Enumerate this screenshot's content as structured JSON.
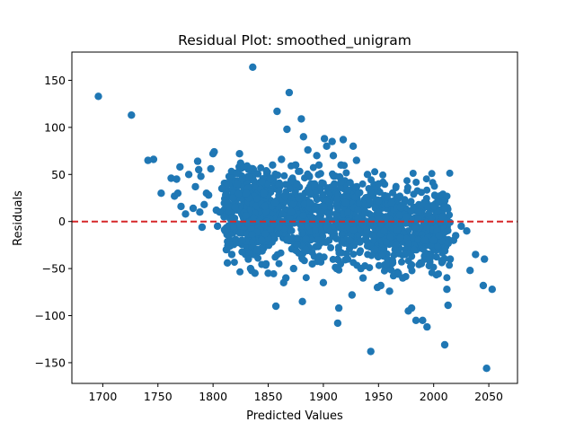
{
  "chart_data": {
    "type": "scatter",
    "title": "Residual Plot: smoothed_unigram",
    "xlabel": "Predicted Values",
    "ylabel": "Residuals",
    "xlim": [
      1672,
      2076
    ],
    "ylim": [
      -172,
      180
    ],
    "xticks": [
      1700,
      1750,
      1800,
      1850,
      1900,
      1950,
      2000,
      2050
    ],
    "yticks": [
      -150,
      -100,
      -50,
      0,
      50,
      100,
      150
    ],
    "grid": false,
    "legend": "none",
    "reference_line": {
      "y": 0,
      "style": "dashed",
      "color": "#d62728"
    },
    "marker_color": "#1f77b4",
    "series": [
      {
        "points": [
          [
            1696,
            133
          ],
          [
            1726,
            113
          ],
          [
            1741,
            65
          ],
          [
            1746,
            66
          ],
          [
            1753,
            30
          ],
          [
            1762,
            46
          ],
          [
            1765,
            27
          ],
          [
            1767,
            45
          ],
          [
            1768,
            30
          ],
          [
            1770,
            58
          ],
          [
            1771,
            16
          ],
          [
            1775,
            8
          ],
          [
            1778,
            50
          ],
          [
            1782,
            14
          ],
          [
            1784,
            37
          ],
          [
            1786,
            64
          ],
          [
            1787,
            55
          ],
          [
            1788,
            10
          ],
          [
            1789,
            48
          ],
          [
            1790,
            -6
          ],
          [
            1792,
            18
          ],
          [
            1794,
            30
          ],
          [
            1796,
            28
          ],
          [
            1798,
            56
          ],
          [
            1800,
            72
          ],
          [
            1801,
            74
          ],
          [
            1803,
            12
          ],
          [
            1804,
            -5
          ],
          [
            1806,
            10
          ],
          [
            1808,
            35
          ],
          [
            1810,
            5
          ],
          [
            1811,
            -10
          ],
          [
            1812,
            -30
          ],
          [
            1813,
            -44
          ],
          [
            1815,
            -25
          ],
          [
            1817,
            -35
          ],
          [
            1818,
            25
          ],
          [
            1820,
            15
          ],
          [
            1822,
            40
          ],
          [
            1824,
            72
          ],
          [
            1825,
            62
          ],
          [
            1826,
            -20
          ],
          [
            1828,
            58
          ],
          [
            1830,
            30
          ],
          [
            1832,
            -40
          ],
          [
            1834,
            -50
          ],
          [
            1836,
            164
          ],
          [
            1838,
            -55
          ],
          [
            1840,
            -30
          ],
          [
            1842,
            0
          ],
          [
            1844,
            -20
          ],
          [
            1846,
            30
          ],
          [
            1848,
            -45
          ],
          [
            1850,
            -55
          ],
          [
            1852,
            45
          ],
          [
            1854,
            60
          ],
          [
            1856,
            20
          ],
          [
            1857,
            -90
          ],
          [
            1858,
            117
          ],
          [
            1860,
            40
          ],
          [
            1862,
            66
          ],
          [
            1864,
            -65
          ],
          [
            1866,
            -60
          ],
          [
            1867,
            98
          ],
          [
            1869,
            137
          ],
          [
            1871,
            10
          ],
          [
            1873,
            -50
          ],
          [
            1875,
            60
          ],
          [
            1876,
            40
          ],
          [
            1878,
            25
          ],
          [
            1880,
            109
          ],
          [
            1881,
            -85
          ],
          [
            1882,
            90
          ],
          [
            1884,
            -30
          ],
          [
            1886,
            76
          ],
          [
            1888,
            20
          ],
          [
            1890,
            -45
          ],
          [
            1892,
            40
          ],
          [
            1894,
            70
          ],
          [
            1896,
            60
          ],
          [
            1898,
            10
          ],
          [
            1900,
            -65
          ],
          [
            1901,
            88
          ],
          [
            1903,
            80
          ],
          [
            1905,
            -20
          ],
          [
            1908,
            85
          ],
          [
            1909,
            70
          ],
          [
            1910,
            40
          ],
          [
            1912,
            -50
          ],
          [
            1913,
            -108
          ],
          [
            1914,
            -92
          ],
          [
            1916,
            60
          ],
          [
            1918,
            87
          ],
          [
            1920,
            20
          ],
          [
            1922,
            -40
          ],
          [
            1924,
            -20
          ],
          [
            1926,
            -78
          ],
          [
            1927,
            80
          ],
          [
            1930,
            65
          ],
          [
            1932,
            30
          ],
          [
            1934,
            -50
          ],
          [
            1936,
            -60
          ],
          [
            1938,
            10
          ],
          [
            1940,
            50
          ],
          [
            1942,
            20
          ],
          [
            1943,
            -138
          ],
          [
            1945,
            -15
          ],
          [
            1947,
            -30
          ],
          [
            1949,
            -70
          ],
          [
            1950,
            40
          ],
          [
            1952,
            -68
          ],
          [
            1955,
            -10
          ],
          [
            1957,
            -45
          ],
          [
            1960,
            -74
          ],
          [
            1962,
            20
          ],
          [
            1965,
            -30
          ],
          [
            1968,
            -55
          ],
          [
            1970,
            15
          ],
          [
            1972,
            -60
          ],
          [
            1975,
            5
          ],
          [
            1977,
            -95
          ],
          [
            1980,
            -92
          ],
          [
            1982,
            -30
          ],
          [
            1984,
            -105
          ],
          [
            1986,
            10
          ],
          [
            1988,
            -44
          ],
          [
            1990,
            -105
          ],
          [
            1992,
            -20
          ],
          [
            1994,
            -112
          ],
          [
            1996,
            -40
          ],
          [
            1998,
            0
          ],
          [
            2000,
            -20
          ],
          [
            2003,
            -10
          ],
          [
            2005,
            -15
          ],
          [
            2008,
            5
          ],
          [
            2010,
            -131
          ],
          [
            2012,
            -72
          ],
          [
            2013,
            -89
          ],
          [
            2015,
            -40
          ],
          [
            2018,
            -20
          ],
          [
            2020,
            -15
          ],
          [
            2025,
            -5
          ],
          [
            2030,
            -10
          ],
          [
            2033,
            -52
          ],
          [
            2038,
            -35
          ],
          [
            2045,
            -68
          ],
          [
            2046,
            -40
          ],
          [
            2048,
            -156
          ],
          [
            2053,
            -72
          ]
        ]
      }
    ]
  }
}
